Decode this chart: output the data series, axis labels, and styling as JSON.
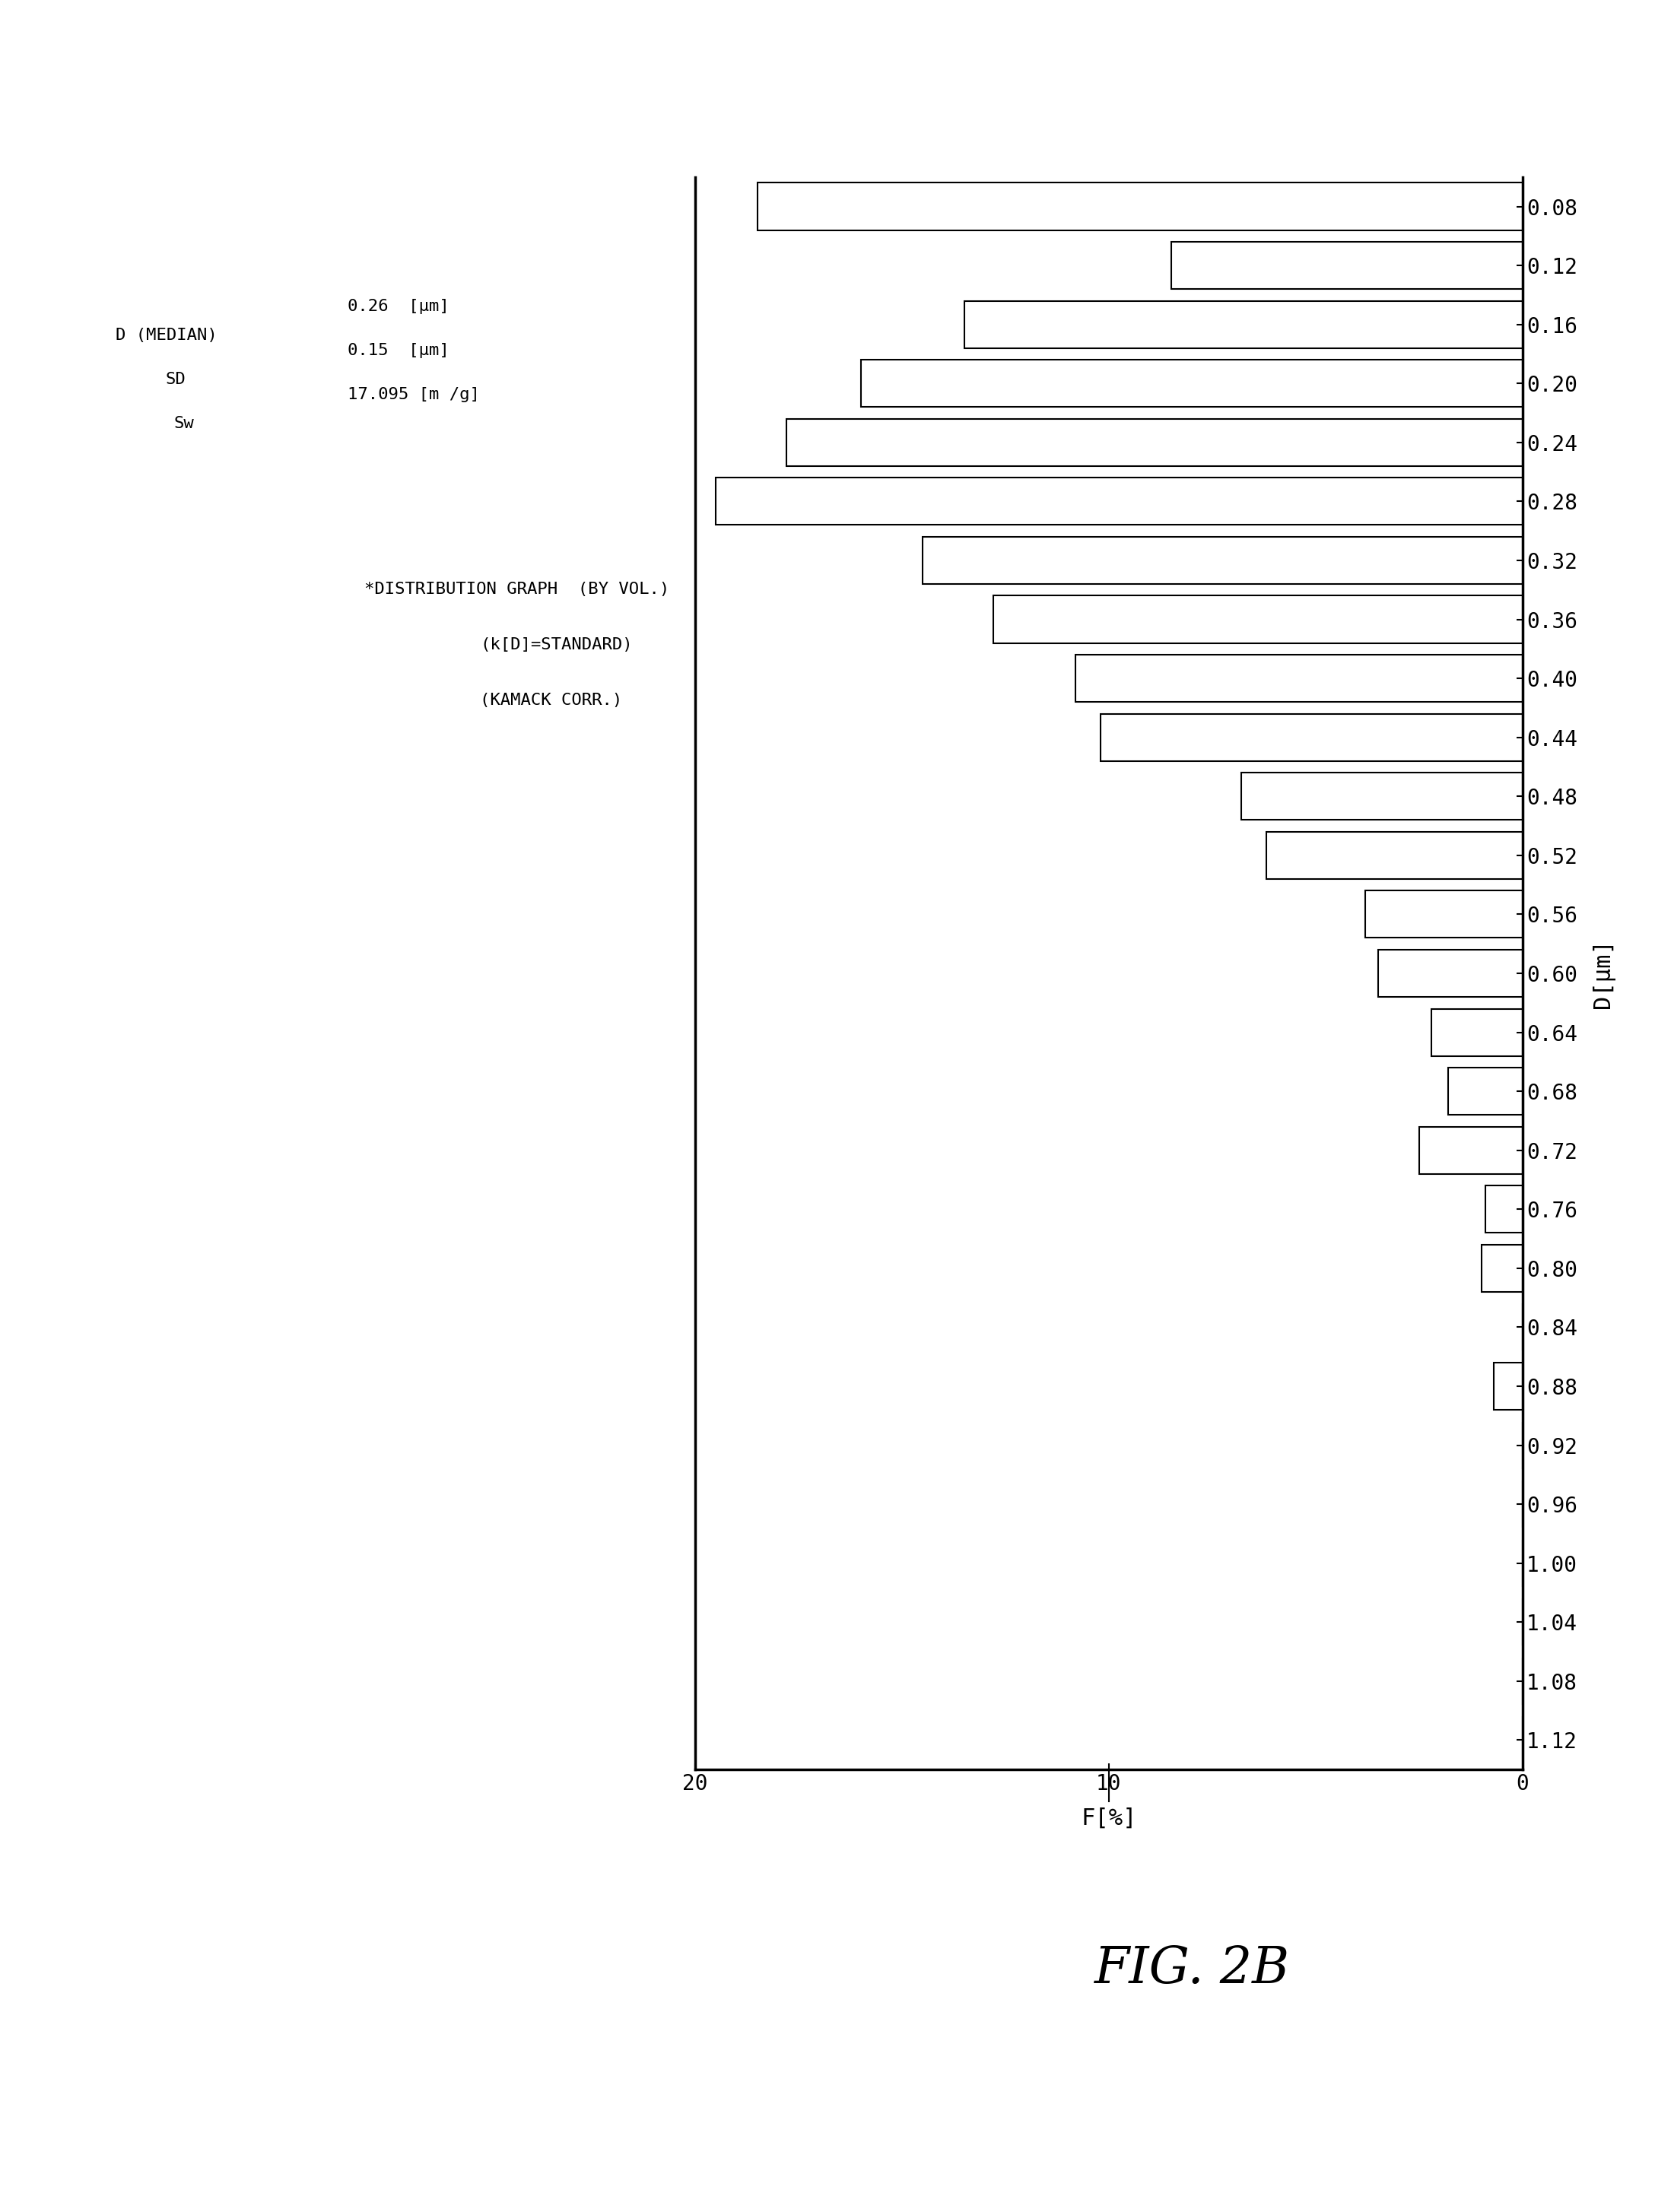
{
  "d_labels": [
    "0.08",
    "0.12",
    "0.16",
    "0.20",
    "0.24",
    "0.28",
    "0.32",
    "0.36",
    "0.40",
    "0.44",
    "0.48",
    "0.52",
    "0.56",
    "0.60",
    "0.64",
    "0.68",
    "0.72",
    "0.76",
    "0.80",
    "0.84",
    "0.88",
    "0.92",
    "0.96",
    "1.00",
    "1.04",
    "1.08",
    "1.12"
  ],
  "f_values": [
    18.5,
    8.5,
    13.5,
    16.0,
    17.8,
    19.5,
    14.5,
    12.8,
    10.8,
    10.2,
    6.8,
    6.2,
    3.8,
    3.5,
    2.2,
    1.8,
    2.5,
    0.9,
    1.0,
    0.0,
    0.7,
    0.0,
    0.0,
    0.0,
    0.0,
    0.0,
    0.0
  ],
  "xlim_max": 20,
  "x_ticks": [
    0,
    10,
    20
  ],
  "x_ticklabels": [
    "0",
    "10",
    "20"
  ],
  "xlabel": "F[%]",
  "ylabel": "D[μm]",
  "stat_line1": "D (MEDIAN)",
  "stat_val1": "0.26",
  "stat_unit1": "[μm]",
  "stat_line2": "SD",
  "stat_val2": "0.15",
  "stat_unit2": "[μm]",
  "stat_line3": "Sw",
  "stat_val3": "17.095",
  "stat_unit3": "[m /g]",
  "dist_line1": "*DISTRIBUTION GRAPH  (BY VOL.)",
  "dist_line2": "(k[D]=STANDARD)",
  "dist_line3": "(KAMACK CORR.)",
  "fig_label": "FIG. 2B",
  "background_color": "#ffffff",
  "bar_color": "#ffffff",
  "bar_edgecolor": "#000000",
  "axis_linewidth": 2.5,
  "bar_linewidth": 1.5,
  "tick_fontsize": 20,
  "label_fontsize": 22,
  "annot_fontsize": 16,
  "fig_label_fontsize": 48
}
